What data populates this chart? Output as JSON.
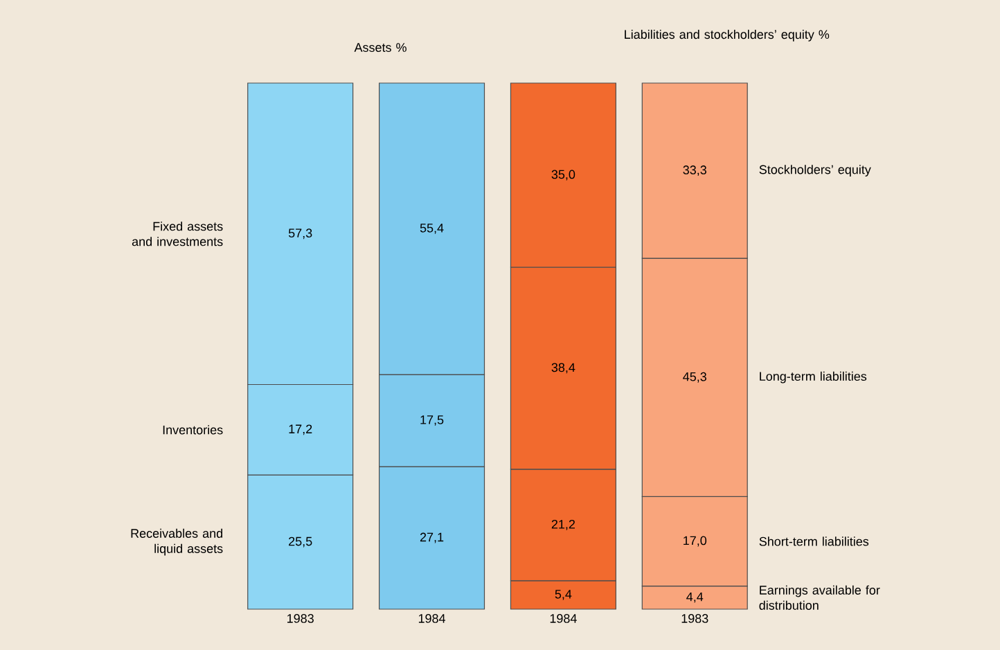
{
  "chart_data": {
    "type": "bar",
    "stacked": true,
    "categories": [
      "1983",
      "1984",
      "1984",
      "1983"
    ],
    "annotations": [
      "Assets %",
      "Liabilities and stockholders’ equity %"
    ],
    "series": [
      {
        "name": "Receivables and liquid assets",
        "colors": [
          "#8ed6f4",
          "#7ecaee",
          null,
          null
        ],
        "values": [
          25.5,
          27.1,
          null,
          null
        ],
        "value_labels": [
          "25,5",
          "27,1",
          null,
          null
        ]
      },
      {
        "name": "Inventories",
        "colors": [
          "#8ed6f4",
          "#7ecaee",
          null,
          null
        ],
        "values": [
          17.2,
          17.5,
          null,
          null
        ],
        "value_labels": [
          "17,2",
          "17,5",
          null,
          null
        ]
      },
      {
        "name": "Fixed assets and investments",
        "colors": [
          "#8ed6f4",
          "#7ecaee",
          null,
          null
        ],
        "values": [
          57.3,
          55.4,
          null,
          null
        ],
        "value_labels": [
          "57,3",
          "55,4",
          null,
          null
        ]
      },
      {
        "name": "Earnings available for distribution",
        "colors": [
          null,
          null,
          "#f26a2e",
          "#f9a57c"
        ],
        "values": [
          null,
          null,
          5.4,
          4.4
        ],
        "value_labels": [
          null,
          null,
          "5,4",
          "4,4"
        ]
      },
      {
        "name": "Short-term liabilities",
        "colors": [
          null,
          null,
          "#f26a2e",
          "#f9a57c"
        ],
        "values": [
          null,
          null,
          21.2,
          17.0
        ],
        "value_labels": [
          null,
          null,
          "21,2",
          "17,0"
        ]
      },
      {
        "name": "Long-term liabilities",
        "colors": [
          null,
          null,
          "#f26a2e",
          "#f9a57c"
        ],
        "values": [
          null,
          null,
          38.4,
          45.3
        ],
        "value_labels": [
          null,
          null,
          "38,4",
          "45,3"
        ]
      },
      {
        "name": "Stockholders’ equity",
        "colors": [
          null,
          null,
          "#f26a2e",
          "#f9a57c"
        ],
        "values": [
          null,
          null,
          35.0,
          33.3
        ],
        "value_labels": [
          null,
          null,
          "35,0",
          "33,3"
        ]
      }
    ]
  }
}
